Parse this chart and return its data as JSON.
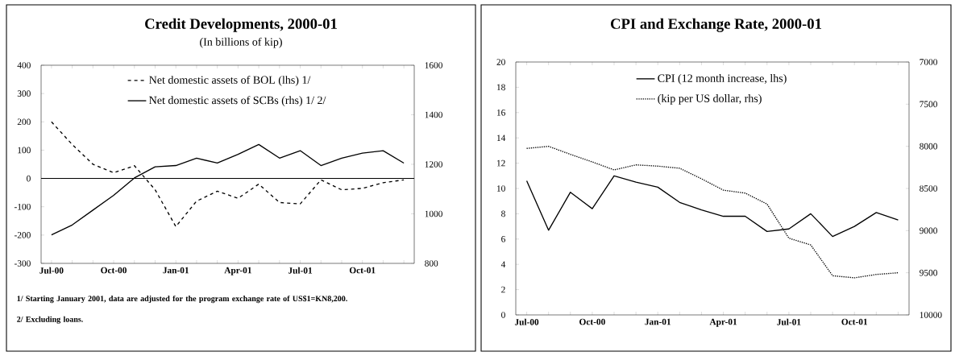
{
  "chart_data": [
    {
      "type": "line",
      "title": "Credit Developments, 2000-01",
      "subtitle": "(In billions of kip)",
      "categories": [
        "Jul-00",
        null,
        null,
        "Oct-00",
        null,
        null,
        "Jan-01",
        null,
        null,
        "Apr-01",
        null,
        null,
        "Jul-01",
        null,
        null,
        "Oct-01",
        null,
        null
      ],
      "series": [
        {
          "name": "Net domestic assets of BOL (lhs) 1/",
          "color": "#000000",
          "line_style": "dashed",
          "values": [
            200,
            120,
            50,
            20,
            45,
            -40,
            -170,
            -80,
            -45,
            -70,
            -20,
            -85,
            -90,
            -5,
            -40,
            -35,
            -15,
            -5
          ]
        },
        {
          "name": "Net domestic assets of SCBs (rhs) 1/ 2/",
          "color": "#000000",
          "line_style": "solid",
          "axis": "y2",
          "values": [
            915,
            955,
            1015,
            1075,
            1145,
            1190,
            1195,
            1225,
            1205,
            1240,
            1280,
            1225,
            1255,
            1195,
            1225,
            1245,
            1255,
            1205
          ]
        }
      ],
      "ylim": [
        -300,
        400
      ],
      "yticks": [
        -300,
        -200,
        -100,
        0,
        100,
        200,
        300,
        400
      ],
      "y2lim": [
        800,
        1600
      ],
      "y2ticks": [
        800,
        1000,
        1200,
        1400,
        1600
      ],
      "legend": "top",
      "annotations": [
        "1/ Starting January 2001, data are adjusted for the program exchange rate of US$1=KN8,200.",
        "2/ Excluding loans."
      ]
    },
    {
      "type": "line",
      "title": "CPI and Exchange Rate, 2000-01",
      "categories": [
        "Jul-00",
        null,
        null,
        "Oct-00",
        null,
        null,
        "Jan-01",
        null,
        null,
        "Apr-01",
        null,
        null,
        "Jul-01",
        null,
        null,
        "Oct-01",
        null,
        null
      ],
      "series": [
        {
          "name": "CPI (12 month increase, lhs)",
          "color": "#000000",
          "line_style": "solid",
          "values": [
            10.6,
            6.7,
            9.7,
            8.4,
            11.0,
            10.5,
            10.1,
            8.9,
            8.3,
            7.8,
            7.8,
            6.6,
            6.8,
            8.0,
            6.2,
            7.0,
            8.1,
            7.5
          ]
        },
        {
          "name": "(kip per US dollar, rhs)",
          "color": "#000000",
          "line_style": "dotted",
          "axis": "y2",
          "values": [
            8025,
            8000,
            8095,
            8185,
            8280,
            8220,
            8235,
            8260,
            8385,
            8520,
            8555,
            8685,
            9090,
            9170,
            9535,
            9560,
            9520,
            9500
          ]
        }
      ],
      "ylim": [
        0,
        20
      ],
      "yticks": [
        0,
        2,
        4,
        6,
        8,
        10,
        12,
        14,
        16,
        18,
        20
      ],
      "y2lim": [
        10000,
        7000
      ],
      "y2ticks": [
        7000,
        7500,
        8000,
        8500,
        9000,
        9500,
        10000
      ],
      "legend": "top"
    }
  ]
}
